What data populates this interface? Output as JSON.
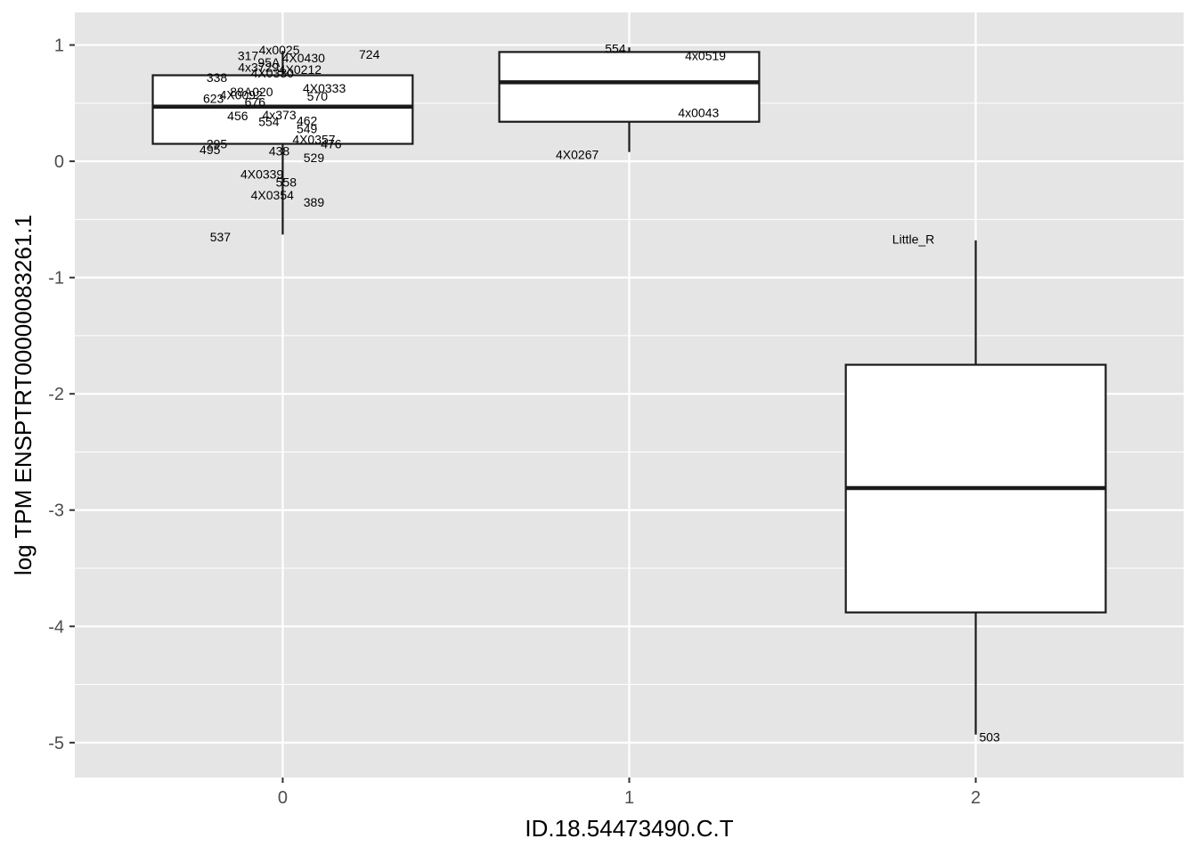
{
  "chart_data": {
    "type": "boxplot",
    "xlabel": "ID.18.54473490.C.T",
    "ylabel": "log TPM ENSPTRT00000083261.1",
    "ylim": [
      -5.3,
      1.28
    ],
    "xlim": [
      -0.6,
      2.6
    ],
    "categories": [
      "0",
      "1",
      "2"
    ],
    "y_ticks": [
      "1",
      "0",
      "-1",
      "-2",
      "-3",
      "-4",
      "-5"
    ],
    "grid": true,
    "boxes": [
      {
        "category": "0",
        "whisker_low": -0.63,
        "q1": 0.15,
        "median": 0.47,
        "q3": 0.74,
        "whisker_high": 0.95
      },
      {
        "category": "1",
        "whisker_low": 0.08,
        "q1": 0.34,
        "median": 0.68,
        "q3": 0.94,
        "whisker_high": 0.98
      },
      {
        "category": "2",
        "whisker_low": -4.93,
        "q1": -3.88,
        "median": -2.81,
        "q3": -1.75,
        "whisker_high": -0.68
      }
    ],
    "point_labels": [
      {
        "text": "4x0025",
        "x": -0.01,
        "y": 0.96
      },
      {
        "text": "317",
        "x": -0.1,
        "y": 0.91
      },
      {
        "text": "4X0430",
        "x": 0.06,
        "y": 0.89
      },
      {
        "text": "724",
        "x": 0.25,
        "y": 0.92
      },
      {
        "text": "95A",
        "x": -0.04,
        "y": 0.85
      },
      {
        "text": "4x3729",
        "x": -0.07,
        "y": 0.81
      },
      {
        "text": "4X0212",
        "x": 0.05,
        "y": 0.79
      },
      {
        "text": "4X0330",
        "x": -0.03,
        "y": 0.76
      },
      {
        "text": "338",
        "x": -0.19,
        "y": 0.72
      },
      {
        "text": "4X0333",
        "x": 0.12,
        "y": 0.63
      },
      {
        "text": "88A020",
        "x": -0.09,
        "y": 0.6
      },
      {
        "text": "570",
        "x": 0.1,
        "y": 0.56
      },
      {
        "text": "4X0092",
        "x": -0.12,
        "y": 0.57
      },
      {
        "text": "623",
        "x": -0.2,
        "y": 0.54
      },
      {
        "text": "676",
        "x": -0.08,
        "y": 0.51
      },
      {
        "text": "4x373",
        "x": -0.01,
        "y": 0.4
      },
      {
        "text": "456",
        "x": -0.13,
        "y": 0.39
      },
      {
        "text": "554",
        "x": -0.04,
        "y": 0.34
      },
      {
        "text": "462",
        "x": 0.07,
        "y": 0.35
      },
      {
        "text": "549",
        "x": 0.07,
        "y": 0.28
      },
      {
        "text": "4X0357",
        "x": 0.09,
        "y": 0.19
      },
      {
        "text": "476",
        "x": 0.14,
        "y": 0.15
      },
      {
        "text": "295",
        "x": -0.19,
        "y": 0.15
      },
      {
        "text": "495",
        "x": -0.21,
        "y": 0.1
      },
      {
        "text": "438",
        "x": -0.01,
        "y": 0.09
      },
      {
        "text": "529",
        "x": 0.09,
        "y": 0.03
      },
      {
        "text": "4X0339",
        "x": -0.06,
        "y": -0.11
      },
      {
        "text": "558",
        "x": 0.01,
        "y": -0.18
      },
      {
        "text": "4X0354",
        "x": -0.03,
        "y": -0.29
      },
      {
        "text": "389",
        "x": 0.09,
        "y": -0.35
      },
      {
        "text": "537",
        "x": -0.18,
        "y": -0.65
      },
      {
        "text": "554",
        "x": 0.96,
        "y": 0.97
      },
      {
        "text": "4x0519",
        "x": 1.22,
        "y": 0.91
      },
      {
        "text": "4x0043",
        "x": 1.2,
        "y": 0.42
      },
      {
        "text": "4X0267",
        "x": 0.85,
        "y": 0.06
      },
      {
        "text": "Little_R",
        "x": 1.82,
        "y": -0.67
      },
      {
        "text": "503",
        "x": 2.04,
        "y": -4.95
      }
    ],
    "colors": {
      "panel_background": "#e5e5e5",
      "grid": "#ffffff",
      "box_fill": "#ffffff",
      "box_stroke": "#1a1a1a"
    }
  }
}
